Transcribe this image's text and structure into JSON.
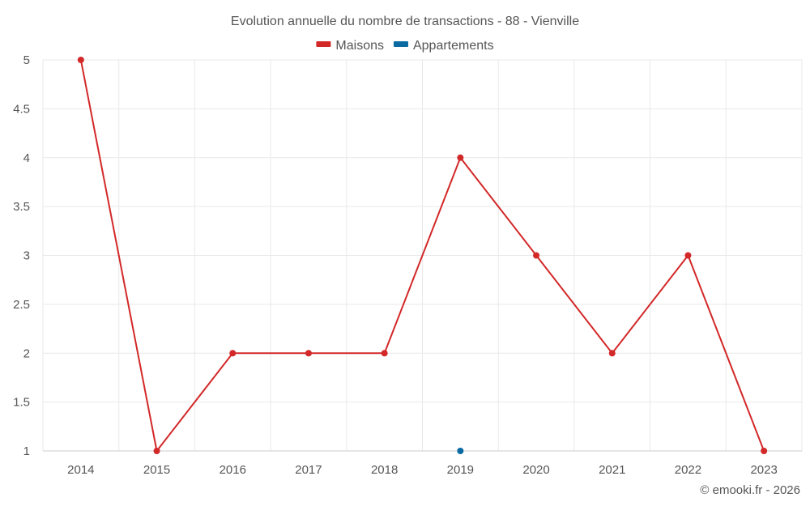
{
  "chart_data": {
    "type": "line",
    "title": "Evolution annuelle du nombre de transactions - 88 - Vienville",
    "x": [
      "2014",
      "2015",
      "2016",
      "2017",
      "2018",
      "2019",
      "2020",
      "2021",
      "2022",
      "2023"
    ],
    "series": [
      {
        "name": "Maisons",
        "color": "#d32828",
        "values": [
          5,
          1,
          2,
          2,
          2,
          4,
          3,
          2,
          3,
          1
        ]
      },
      {
        "name": "Appartements",
        "color": "#0a6aa1",
        "values": [
          null,
          null,
          null,
          null,
          null,
          1,
          null,
          null,
          null,
          null
        ]
      }
    ],
    "yticks": [
      "1",
      "1.5",
      "2",
      "2.5",
      "3",
      "3.5",
      "4",
      "4.5",
      "5"
    ],
    "ylim": [
      1,
      5
    ],
    "grid": true,
    "legend": "top-center",
    "credit": "© emooki.fr - 2026"
  }
}
